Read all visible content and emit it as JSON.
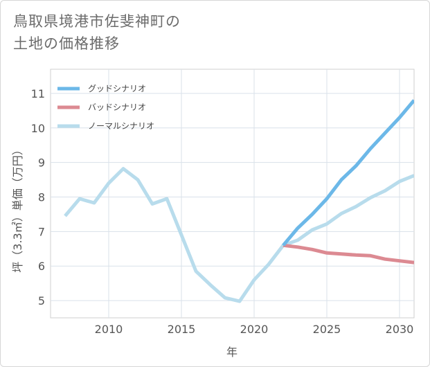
{
  "title_lines": [
    "鳥取県境港市佐斐神町の",
    "土地の価格推移"
  ],
  "chart_data": {
    "type": "line",
    "xlabel": "年",
    "ylabel": "坪（3.3㎡）単価（万円）",
    "xlim": [
      2006,
      2031
    ],
    "ylim": [
      4.5,
      11.7
    ],
    "xticks": [
      2010,
      2015,
      2020,
      2025,
      2030
    ],
    "yticks": [
      5,
      6,
      7,
      8,
      9,
      10,
      11
    ],
    "grid": true,
    "legend": "top-left",
    "series": [
      {
        "name": "グッドシナリオ",
        "color": "#6cb8e8",
        "x": [
          2022,
          2023,
          2024,
          2025,
          2026,
          2027,
          2028,
          2029,
          2030,
          2031
        ],
        "y": [
          6.6,
          7.1,
          7.5,
          7.95,
          8.5,
          8.9,
          9.4,
          9.85,
          10.3,
          10.8
        ]
      },
      {
        "name": "バッドシナリオ",
        "color": "#dc8a92",
        "x": [
          2022,
          2023,
          2024,
          2025,
          2026,
          2027,
          2028,
          2029,
          2030,
          2031
        ],
        "y": [
          6.6,
          6.55,
          6.48,
          6.38,
          6.35,
          6.32,
          6.3,
          6.2,
          6.15,
          6.1
        ]
      },
      {
        "name": "ノーマルシナリオ",
        "color": "#b8dcec",
        "x": [
          2007,
          2008,
          2009,
          2010,
          2011,
          2012,
          2013,
          2014,
          2015,
          2016,
          2017,
          2018,
          2019,
          2020,
          2021,
          2022,
          2023,
          2024,
          2025,
          2026,
          2027,
          2028,
          2029,
          2030,
          2031
        ],
        "y": [
          7.45,
          7.95,
          7.83,
          8.4,
          8.82,
          8.5,
          7.8,
          7.95,
          6.9,
          5.85,
          5.45,
          5.08,
          4.98,
          5.6,
          6.05,
          6.6,
          6.75,
          7.05,
          7.22,
          7.52,
          7.72,
          7.98,
          8.18,
          8.45,
          8.62
        ]
      }
    ]
  }
}
